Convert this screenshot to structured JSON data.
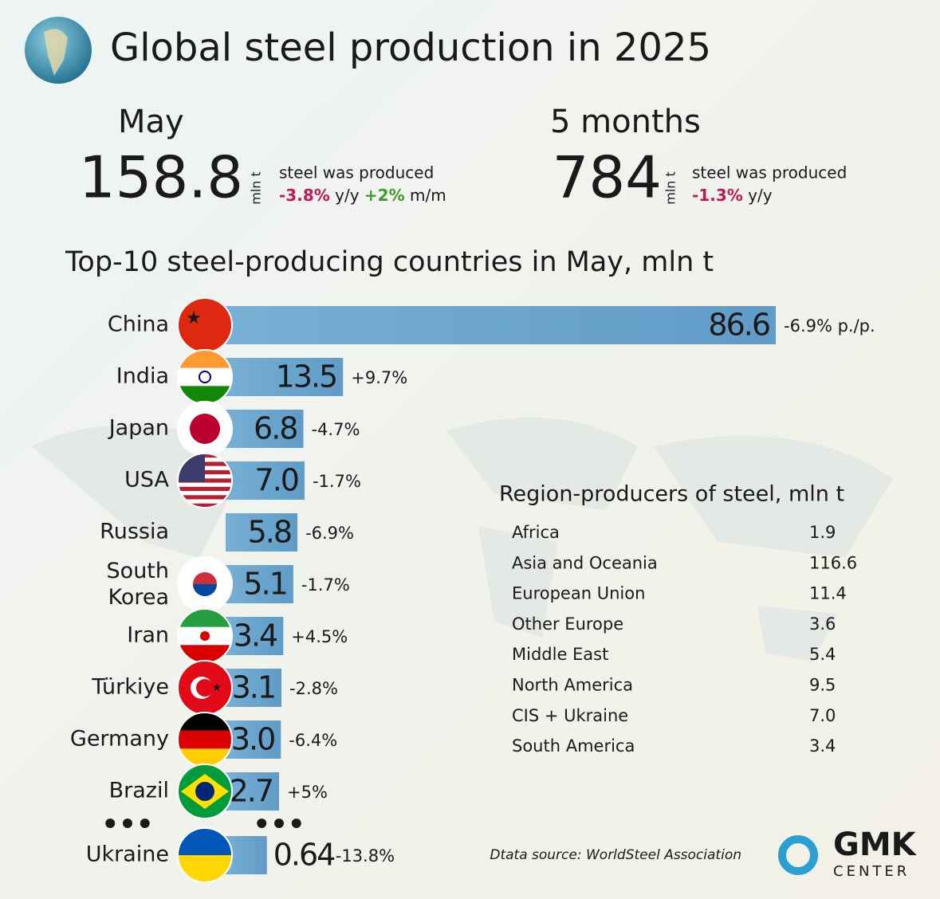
{
  "header": {
    "title": "Global steel production in 2025"
  },
  "stats": [
    {
      "period": "May",
      "value": 158.8,
      "unit": "mln t",
      "caption": "steel was produced",
      "changes": [
        {
          "value": "-3.8%",
          "basis": "y/y"
        },
        {
          "value": "+2%",
          "basis": "m/m"
        }
      ]
    },
    {
      "period": "5 months",
      "value": 784,
      "unit": "mln t",
      "caption": "steel was produced",
      "changes": [
        {
          "value": "-1.3%",
          "basis": "y/y"
        }
      ]
    }
  ],
  "chart_data": {
    "type": "bar",
    "orientation": "horizontal",
    "title": "Top-10 steel-producing countries in May, mln t",
    "categories": [
      "China",
      "India",
      "Japan",
      "USA",
      "Russia",
      "South Korea",
      "Iran",
      "Türkiye",
      "Germany",
      "Brazil",
      "Ukraine"
    ],
    "values": [
      86.6,
      13.5,
      6.8,
      7.0,
      5.8,
      5.1,
      3.4,
      3.1,
      3.0,
      2.7,
      0.64
    ],
    "value_labels": [
      "86.6",
      "13.5",
      "6.8",
      "7.0",
      "5.8",
      "5.1",
      "3.4",
      "3.1",
      "3.0",
      "2.7",
      "0.64"
    ],
    "annotations": [
      "-6.9% p./p.",
      "+9.7%",
      "-4.7%",
      "-1.7%",
      "-6.9%",
      "-1.7%",
      "+4.5%",
      "-2.8%",
      "-6.4%",
      "+5%",
      "-13.8%"
    ],
    "color": "#5b9fcc"
  },
  "regions": {
    "title": "Region-producers of steel, mln t",
    "rows": [
      [
        "Africa",
        "1.9"
      ],
      [
        "Asia and Oceania",
        "116.6"
      ],
      [
        "European Union",
        "11.4"
      ],
      [
        "Other Europe",
        "3.6"
      ],
      [
        "Middle East",
        "5.4"
      ],
      [
        "North America",
        "9.5"
      ],
      [
        "CIS + Ukraine",
        "7.0"
      ],
      [
        "South America",
        "3.4"
      ]
    ]
  },
  "source": "Dtata source: WorldSteel Association",
  "logo": {
    "name": "GMK",
    "subtitle": "CENTER"
  }
}
